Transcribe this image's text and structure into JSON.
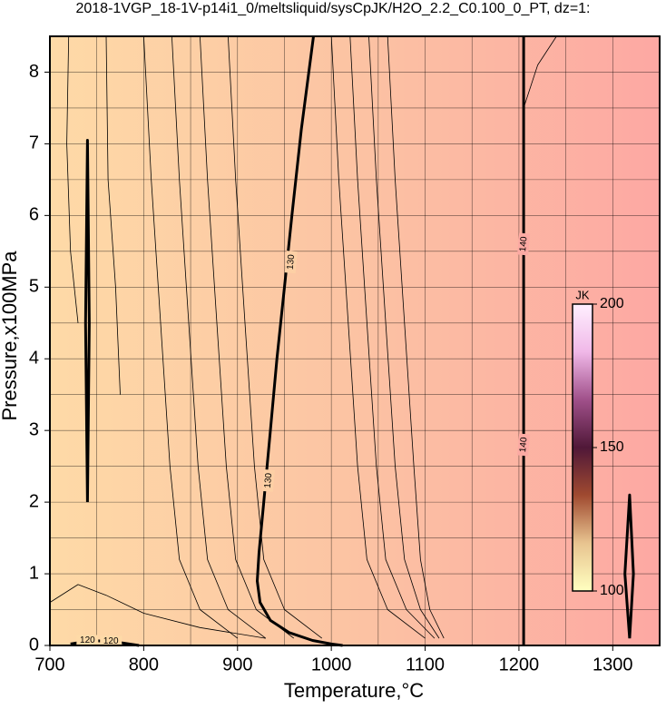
{
  "chart_data": {
    "type": "contour",
    "title": "2018-1VGP_18-1V-p14i1_0/meltsliquid/sysCpJK/H2O_2.2_C0.100_0_PT, dz=1:",
    "x_label": "Temperature,°C",
    "y_label": "Pressure,x100MPa",
    "xlim": [
      700,
      1350
    ],
    "ylim": [
      0,
      8.5
    ],
    "xticks": [
      700,
      800,
      900,
      1000,
      1100,
      1200,
      1300
    ],
    "yticks": [
      0,
      1,
      2,
      3,
      4,
      5,
      6,
      7,
      8
    ],
    "x_minor_grid": [
      750,
      850,
      950,
      1050,
      1150,
      1250
    ],
    "y_minor_grid": [
      0.5,
      1.5,
      2.5,
      3.5,
      4.5,
      5.5,
      6.5,
      7.5
    ],
    "grid": true,
    "background_colors": [
      "#fedaa7",
      "#fcc3a3",
      "#fda8a3"
    ],
    "contours": [
      {
        "x": [
          981,
          968,
          958,
          950,
          942,
          935,
          928,
          923,
          921,
          924,
          935,
          955,
          980,
          1000,
          1012
        ],
        "y": [
          8.5,
          7.2,
          6.0,
          5.0,
          4.0,
          3.0,
          2.0,
          1.3,
          0.9,
          0.6,
          0.35,
          0.18,
          0.07,
          0.02,
          0
        ],
        "bold": true
      },
      {
        "x": [
          1205,
          1205,
          1205
        ],
        "y": [
          0,
          4,
          8.5
        ],
        "bold": true
      },
      {
        "x": [
          722,
          745,
          770,
          795
        ],
        "y": [
          0.02,
          0.07,
          0.05,
          0
        ],
        "bold": true
      },
      {
        "x": [
          740,
          742,
          740,
          738,
          740
        ],
        "y": [
          2.0,
          4.5,
          7.05,
          4.5,
          2.0
        ],
        "bold": true
      },
      {
        "x": [
          1318,
          1322,
          1318,
          1313,
          1318
        ],
        "y": [
          0.1,
          1.0,
          2.1,
          1.0,
          0.1
        ],
        "bold": true
      },
      {
        "x": [
          800,
          808,
          818,
          828,
          838,
          860,
          900
        ],
        "y": [
          8.5,
          6.5,
          4.5,
          2.5,
          1.2,
          0.5,
          0.1
        ],
        "bold": false
      },
      {
        "x": [
          830,
          838,
          848,
          858,
          868,
          890,
          930
        ],
        "y": [
          8.5,
          6.5,
          4.5,
          2.5,
          1.2,
          0.5,
          0.1
        ],
        "bold": false
      },
      {
        "x": [
          860,
          868,
          878,
          888,
          898,
          920,
          960
        ],
        "y": [
          8.5,
          6.5,
          4.5,
          2.5,
          1.2,
          0.5,
          0.1
        ],
        "bold": false
      },
      {
        "x": [
          890,
          898,
          908,
          918,
          928,
          950,
          990
        ],
        "y": [
          8.5,
          6.5,
          4.5,
          2.5,
          1.2,
          0.5,
          0.1
        ],
        "bold": false
      },
      {
        "x": [
          1000,
          1008,
          1018,
          1028,
          1038,
          1060,
          1100
        ],
        "y": [
          8.5,
          6.5,
          4.5,
          2.5,
          1.2,
          0.5,
          0.1
        ],
        "bold": false
      },
      {
        "x": [
          1020,
          1028,
          1038,
          1048,
          1058,
          1080,
          1110
        ],
        "y": [
          8.5,
          6.5,
          4.5,
          2.5,
          1.2,
          0.5,
          0.1
        ],
        "bold": false
      },
      {
        "x": [
          1040,
          1048,
          1058,
          1068,
          1078,
          1095,
          1115
        ],
        "y": [
          8.5,
          6.5,
          4.5,
          2.5,
          1.2,
          0.5,
          0.1
        ],
        "bold": false
      },
      {
        "x": [
          1060,
          1068,
          1078,
          1088,
          1095,
          1105,
          1120
        ],
        "y": [
          8.5,
          6.5,
          4.5,
          2.5,
          1.2,
          0.5,
          0.1
        ],
        "bold": false
      },
      {
        "x": [
          700,
          730,
          760,
          800,
          860,
          930
        ],
        "y": [
          0.6,
          0.85,
          0.7,
          0.45,
          0.25,
          0.1
        ],
        "bold": false
      },
      {
        "x": [
          760,
          762,
          770,
          775
        ],
        "y": [
          8.5,
          6.5,
          5.0,
          3.5
        ],
        "bold": false
      },
      {
        "x": [
          720,
          718,
          722,
          730
        ],
        "y": [
          8.5,
          7.0,
          5.5,
          4.5
        ],
        "bold": false
      },
      {
        "x": [
          1205,
          1220,
          1240
        ],
        "y": [
          7.5,
          8.1,
          8.5
        ],
        "bold": false
      }
    ],
    "contour_labels": [
      {
        "text": "130",
        "x": 957,
        "y": 5.35
      },
      {
        "text": "130",
        "x": 933,
        "y": 2.3
      },
      {
        "text": "140",
        "x": 1205,
        "y": 5.6
      },
      {
        "text": "140",
        "x": 1205,
        "y": 2.8
      },
      {
        "text": "120",
        "x": 740,
        "y": 0.07
      },
      {
        "text": "120",
        "x": 765,
        "y": 0.06
      }
    ],
    "colorbar": {
      "label": "JK",
      "lim": [
        100,
        200
      ],
      "ticks": [
        100,
        150,
        200
      ],
      "colors": [
        "#ffffc0",
        "#e8c490",
        "#a04a30",
        "#501838",
        "#a0508a",
        "#f0b8e8",
        "#fff0ff"
      ]
    }
  }
}
